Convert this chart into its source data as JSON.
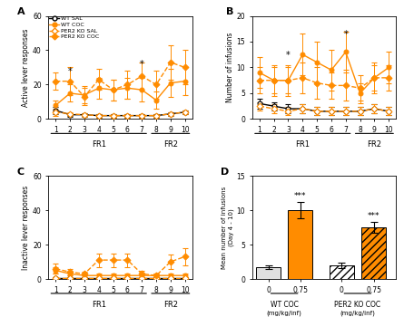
{
  "days": [
    1,
    2,
    3,
    4,
    5,
    6,
    7,
    8,
    9,
    10
  ],
  "A_wt_sal_mean": [
    5,
    2.5,
    2.5,
    2,
    2,
    2,
    2,
    2,
    3,
    4
  ],
  "A_wt_sal_err": [
    2,
    1,
    1,
    1,
    1,
    1,
    1,
    1,
    1,
    1
  ],
  "A_wt_coc_mean": [
    8,
    15,
    14,
    18,
    17,
    18,
    17,
    11,
    21,
    22
  ],
  "A_wt_coc_err": [
    3,
    5,
    5,
    6,
    6,
    6,
    7,
    5,
    8,
    8
  ],
  "A_per2_sal_mean": [
    4,
    3,
    2.5,
    2,
    2,
    2,
    2,
    2,
    3,
    4
  ],
  "A_per2_sal_err": [
    2,
    1,
    1,
    1,
    1,
    1,
    1,
    1,
    1,
    1
  ],
  "A_per2_coc_mean": [
    22,
    22,
    13,
    23,
    17,
    20,
    25,
    20,
    33,
    30
  ],
  "A_per2_coc_err": [
    5,
    8,
    5,
    6,
    6,
    8,
    8,
    8,
    10,
    10
  ],
  "B_wt_sal_mean": [
    3,
    2.5,
    2,
    2,
    1.5,
    1.5,
    1.5,
    1.5,
    2,
    1.5
  ],
  "B_wt_sal_err": [
    1,
    0.8,
    0.8,
    0.8,
    0.8,
    0.8,
    0.8,
    0.8,
    0.8,
    0.8
  ],
  "B_wt_coc_mean": [
    9,
    7.5,
    7.5,
    12.5,
    11,
    9.5,
    13,
    5,
    8,
    10
  ],
  "B_wt_coc_err": [
    3,
    3,
    3,
    4,
    4,
    4,
    4,
    2,
    3,
    3
  ],
  "B_per2_sal_mean": [
    2.5,
    2,
    1.5,
    2,
    1.5,
    1.5,
    1.5,
    1.5,
    2,
    1.5
  ],
  "B_per2_sal_err": [
    0.8,
    0.8,
    0.8,
    0.8,
    0.8,
    0.8,
    0.8,
    0.8,
    0.8,
    0.8
  ],
  "B_per2_coc_mean": [
    7.5,
    7.5,
    7.5,
    8,
    7,
    6.5,
    6.5,
    6,
    8,
    8
  ],
  "B_per2_coc_err": [
    2.5,
    2.5,
    2.5,
    3,
    3,
    2.5,
    3,
    2.5,
    2.5,
    2.5
  ],
  "C_wt_sal_mean": [
    0.5,
    0.5,
    0.5,
    0.5,
    0.5,
    0.5,
    0.5,
    0.5,
    0.5,
    0.5
  ],
  "C_wt_sal_err": [
    0.3,
    0.3,
    0.3,
    0.3,
    0.3,
    0.3,
    0.3,
    0.3,
    0.3,
    0.3
  ],
  "C_wt_coc_mean": [
    5,
    3,
    2,
    2,
    2,
    2,
    2,
    2,
    2,
    2
  ],
  "C_wt_coc_err": [
    2,
    1,
    1,
    1,
    1,
    1,
    1,
    1,
    1,
    1
  ],
  "C_per2_sal_mean": [
    0.5,
    0.5,
    0.5,
    0.5,
    0.5,
    0.5,
    0.5,
    0.5,
    0.5,
    0.5
  ],
  "C_per2_sal_err": [
    0.3,
    0.3,
    0.3,
    0.3,
    0.3,
    0.3,
    0.3,
    0.3,
    0.3,
    0.3
  ],
  "C_per2_coc_mean": [
    6,
    4,
    3,
    11,
    11,
    11,
    3,
    2,
    10,
    13
  ],
  "C_per2_coc_err": [
    3,
    2,
    1,
    4,
    4,
    4,
    2,
    1,
    4,
    5
  ],
  "D_wt_sal_mean": 1.7,
  "D_wt_sal_err": 0.3,
  "D_wt_coc_mean": 10.0,
  "D_wt_coc_err": 1.2,
  "D_per2_sal_mean": 2.0,
  "D_per2_sal_err": 0.4,
  "D_per2_coc_mean": 7.5,
  "D_per2_coc_err": 0.8,
  "color_orange": "#FF8C00",
  "color_black": "#000000",
  "color_white": "#FFFFFF",
  "background": "#FFFFFF",
  "A_star_days": [
    2,
    7
  ],
  "A_star_vals": [
    25,
    29
  ],
  "B_star_days": [
    3,
    7
  ],
  "B_star_vals": [
    11.5,
    15.5
  ]
}
